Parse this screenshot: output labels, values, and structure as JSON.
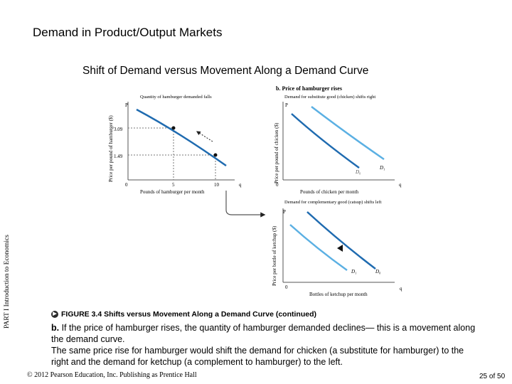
{
  "slide": {
    "title": "Demand in Product/Output Markets",
    "subtitle": "Shift of Demand versus Movement Along a Demand Curve",
    "side_label": "PART I Introduction to Economics",
    "footer": "© 2012 Pearson Education, Inc. Publishing as Prentice Hall",
    "page": "25 of 50"
  },
  "figure": {
    "panel_heading": "b. Price of hamburger rises",
    "hamburger": {
      "caption": "Quantity of hamburger demanded falls",
      "ylabel": "Price per pound of hamburger ($)",
      "xlabel": "Pounds of hamburger per month",
      "axis_p": "P",
      "axis_q": "q",
      "axis_zero": "0",
      "y_tick_high": "3.09",
      "y_tick_low": "1.49",
      "x_tick_5": "5",
      "x_tick_10": "10"
    },
    "chicken": {
      "caption": "Demand for substitute good (chicken) shifts right",
      "ylabel": "Price per pound of chicken ($)",
      "xlabel": "Pounds of chicken per month",
      "axis_p": "P",
      "axis_q": "q",
      "axis_zero": "0",
      "curve_d1": "D₁"
    },
    "ketchup": {
      "caption": "Demand for complementary good (catsup) shifts left",
      "ylabel": "Price per bottle of ketchup ($)",
      "xlabel": "Bottles of ketchup per month",
      "axis_p": "P",
      "axis_q": "q",
      "axis_zero": "0",
      "curve_d1": "D₁",
      "curve_d0": "D₀"
    },
    "colors": {
      "curve": "#1f6bb0",
      "curve_light": "#5bb0e3",
      "axis": "#555555"
    }
  },
  "caption": {
    "head": "FIGURE 3.4  Shifts versus Movement Along a Demand Curve (continued)",
    "bold_lead": "b.",
    "line1": " If the price of hamburger rises, the quantity of hamburger demanded declines— this is a movement along the demand curve.",
    "line2": "The same price rise for hamburger would shift the demand for chicken (a substitute for hamburger) to the right and the demand for ketchup (a complement to hamburger) to the left."
  }
}
